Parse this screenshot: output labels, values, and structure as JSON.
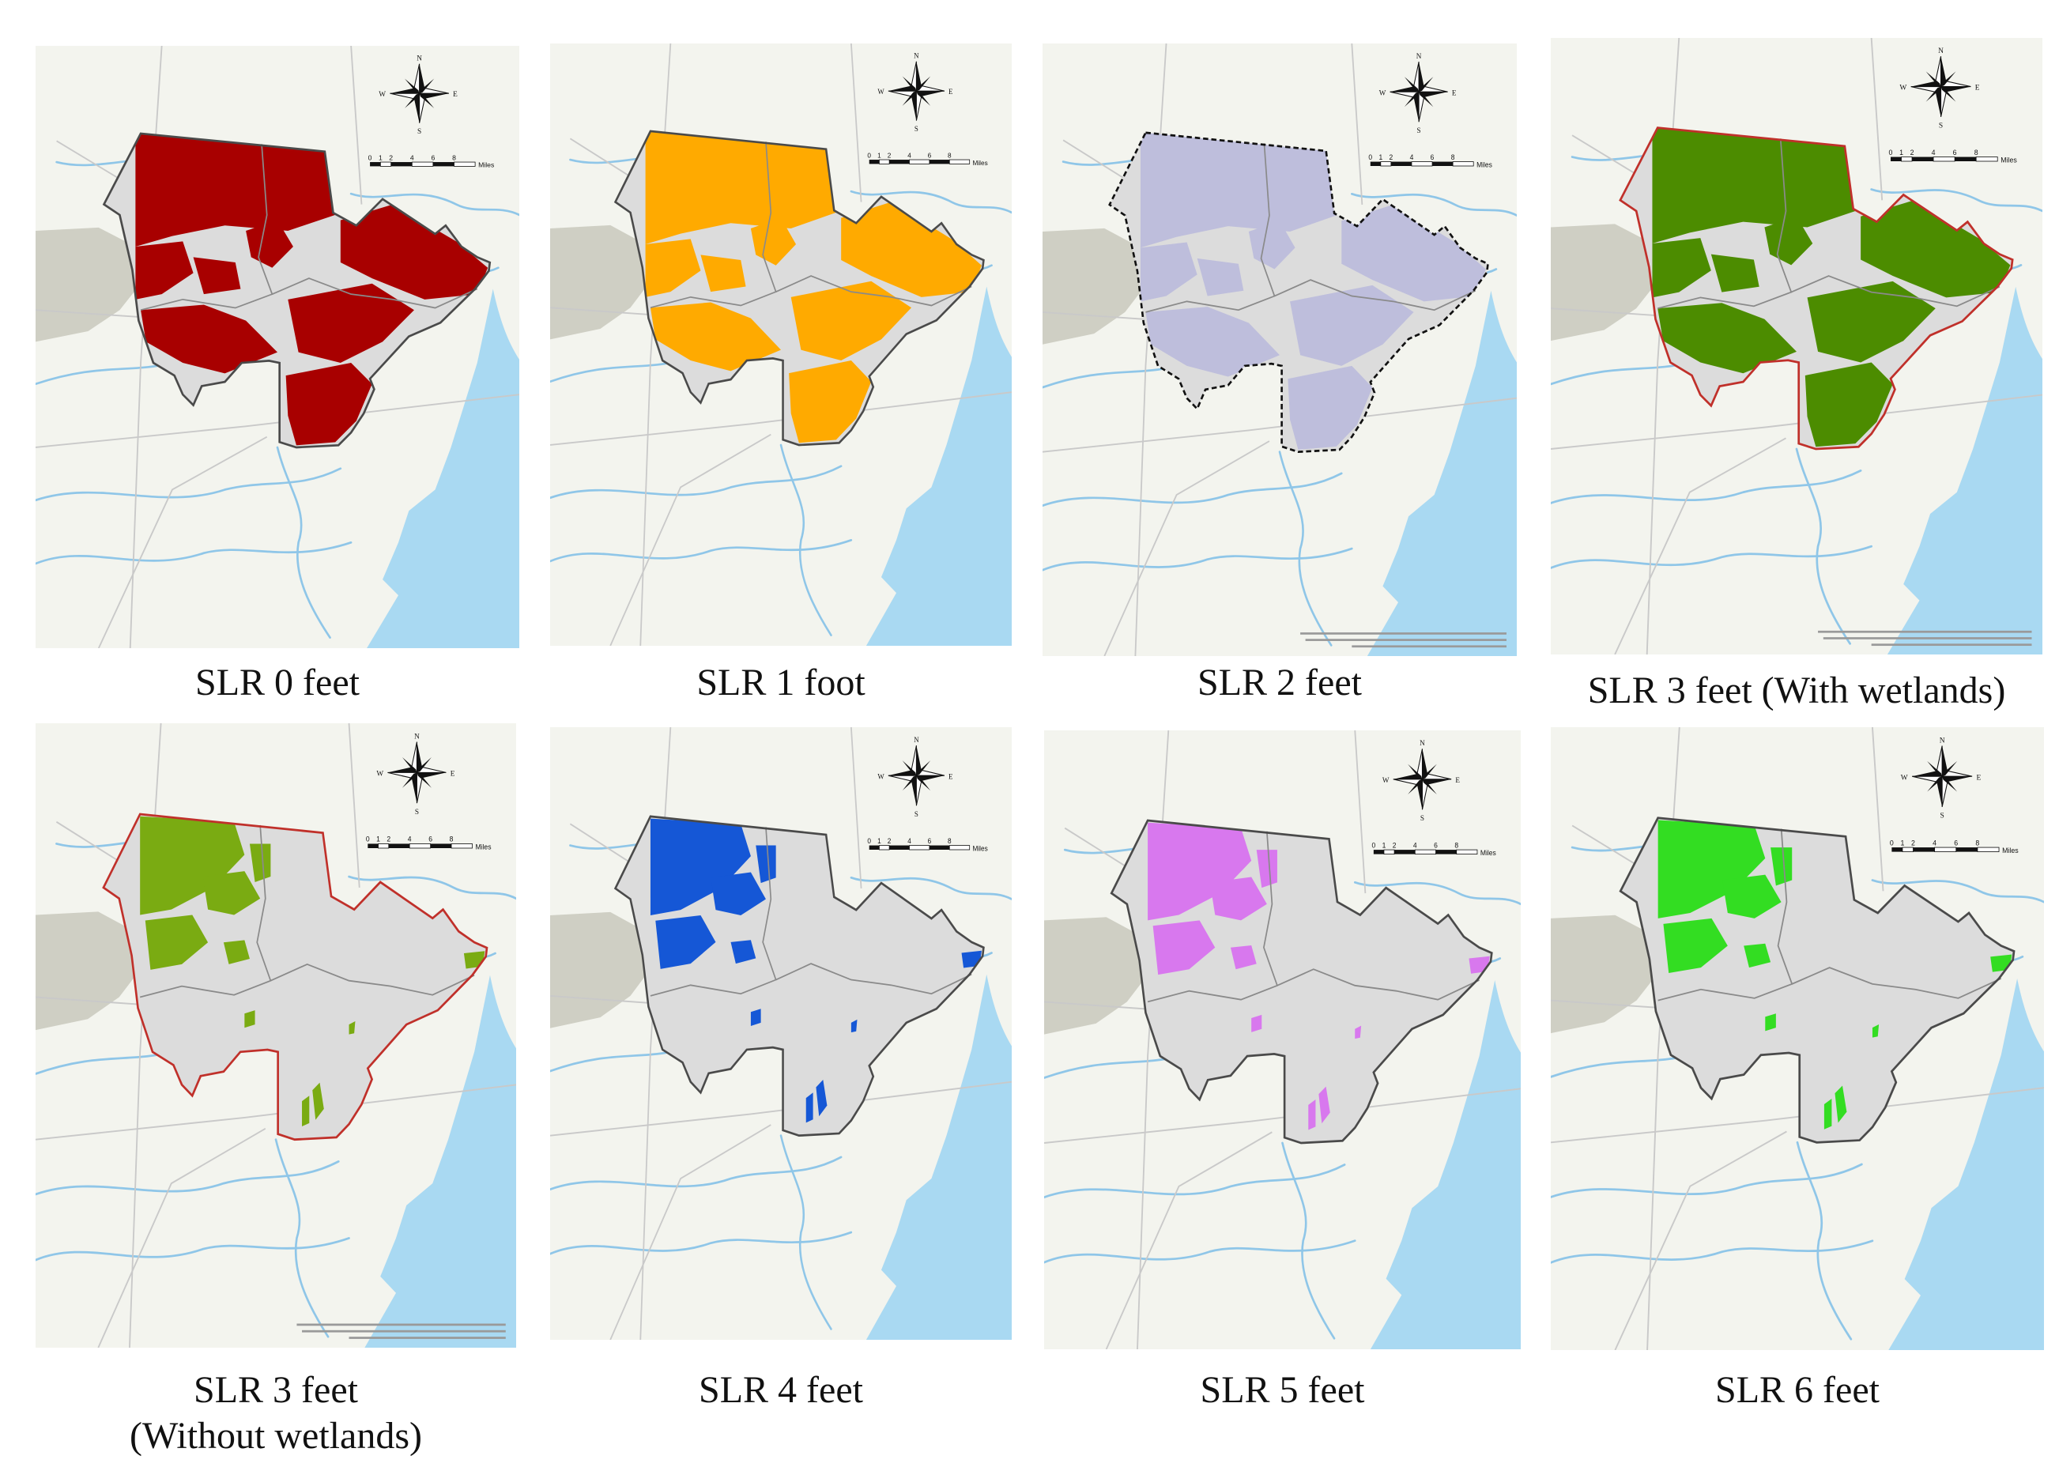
{
  "figure": {
    "panels": [
      {
        "id": "slr0",
        "caption": [
          "SLR 0 feet"
        ],
        "fill_color": "#a80000",
        "boundary_color": "#4a4a4a",
        "boundary_style": "solid",
        "shows_sources_text": false,
        "coverage": "high"
      },
      {
        "id": "slr1",
        "caption": [
          "SLR 1 foot"
        ],
        "fill_color": "#ffaa00",
        "boundary_color": "#4a4a4a",
        "boundary_style": "solid",
        "shows_sources_text": false,
        "coverage": "high"
      },
      {
        "id": "slr2",
        "caption": [
          "SLR 2 feet"
        ],
        "fill_color": "#bebedc",
        "boundary_color": "#111111",
        "boundary_style": "dashed",
        "shows_sources_text": true,
        "coverage": "high"
      },
      {
        "id": "slr3w",
        "caption": [
          "SLR 3 feet (With wetlands)"
        ],
        "fill_color": "#4c8c00",
        "boundary_color": "#c0302a",
        "boundary_style": "solid",
        "shows_sources_text": true,
        "coverage": "high"
      },
      {
        "id": "slr3wo",
        "caption": [
          "SLR 3 feet",
          "(Without wetlands)"
        ],
        "fill_color": "#7aab12",
        "boundary_color": "#c0302a",
        "boundary_style": "solid",
        "shows_sources_text": true,
        "coverage": "low"
      },
      {
        "id": "slr4",
        "caption": [
          "SLR 4 feet"
        ],
        "fill_color": "#1557d6",
        "boundary_color": "#4a4a4a",
        "boundary_style": "solid",
        "shows_sources_text": false,
        "coverage": "low"
      },
      {
        "id": "slr5",
        "caption": [
          "SLR 5 feet"
        ],
        "fill_color": "#d878ee",
        "boundary_color": "#4a4a4a",
        "boundary_style": "solid",
        "shows_sources_text": false,
        "coverage": "low"
      },
      {
        "id": "slr6",
        "caption": [
          "SLR 6 feet"
        ],
        "fill_color": "#33dd22",
        "boundary_color": "#4a4a4a",
        "boundary_style": "solid",
        "shows_sources_text": false,
        "coverage": "low"
      }
    ],
    "compass": {
      "n": "N",
      "s": "S",
      "e": "E",
      "w": "W"
    },
    "scale_bar": {
      "ticks": [
        "0",
        "1",
        "2",
        "4",
        "6",
        "8"
      ],
      "unit": "Miles"
    },
    "colors": {
      "land": "#f3f4ee",
      "water": "#a9d9f2",
      "river": "#8fc6e8",
      "road": "#c9c9c9",
      "hills": "#cfcfc4",
      "county": "#dcdcdc",
      "district": "#8a8a8a"
    }
  }
}
